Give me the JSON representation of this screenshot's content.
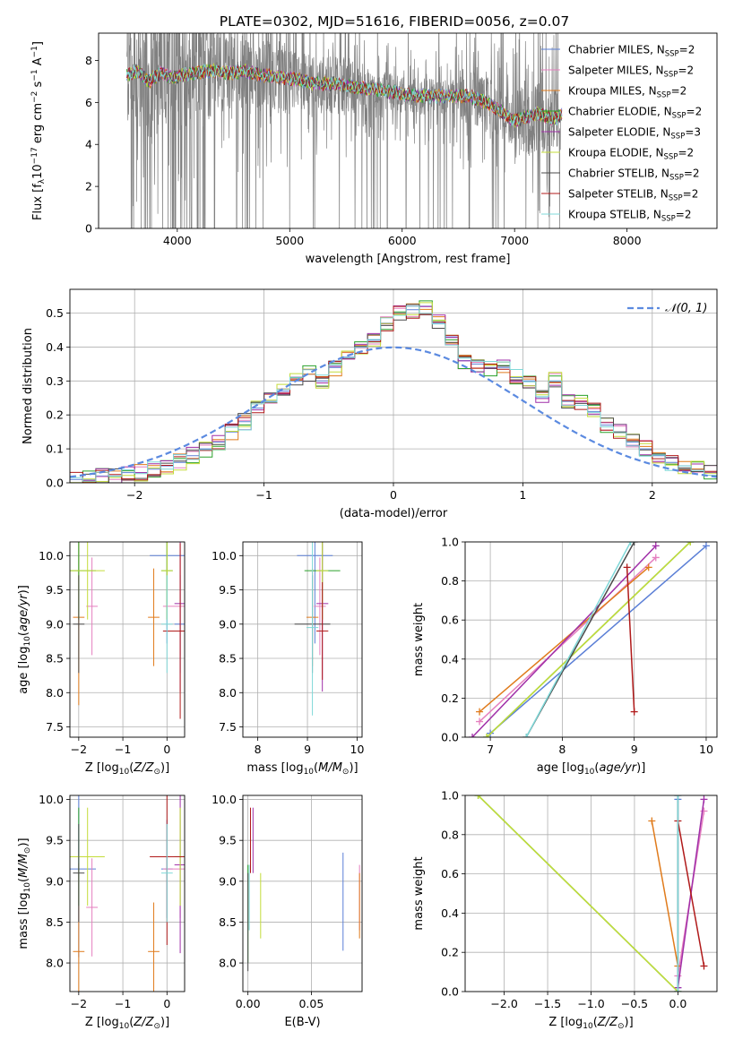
{
  "figure_title": "PLATE=0302, MJD=51616, FIBERID=0056, z=0.07",
  "colors": {
    "ChabrierMILES": "#5b7fd6",
    "SalpeterMILES": "#e57fbf",
    "KroupaMILES": "#e07b1c",
    "ChabrierELODIE": "#2aa12a",
    "SalpeterELODIE": "#a02fa8",
    "KroupaELODIE": "#c4dc3a",
    "ChabrierSTELIB": "#4a4a4a",
    "SalpeterSTELIB": "#b01a1a",
    "KroupaSTELIB": "#7fd8d8",
    "data": "#808080",
    "normal": "#5b8ae0"
  },
  "chart_data": [
    {
      "id": "spectrum",
      "type": "line",
      "title": "PLATE=0302, MJD=51616, FIBERID=0056, z=0.07",
      "xlabel": "wavelength [Angstrom, rest frame]",
      "ylabel": "Flux [f_λ 10^-17 erg cm^-2 s^-1 A^-1]",
      "xlim": [
        3300,
        8800
      ],
      "ylim": [
        0,
        9.3
      ],
      "xticks": [
        4000,
        5000,
        6000,
        7000,
        8000
      ],
      "yticks": [
        0,
        2,
        4,
        6,
        8
      ],
      "grid": false,
      "legend_position": "upper-right",
      "legend": [
        {
          "name": "Chabrier MILES, N_SSP=2",
          "pre": "Chabrier MILES, N",
          "sub": "SSP",
          "post": "=2",
          "color": "#5b7fd6"
        },
        {
          "name": "Salpeter MILES, N_SSP=2",
          "pre": "Salpeter MILES, N",
          "sub": "SSP",
          "post": "=2",
          "color": "#e57fbf"
        },
        {
          "name": "Kroupa MILES, N_SSP=2",
          "pre": "Kroupa MILES, N",
          "sub": "SSP",
          "post": "=2",
          "color": "#e07b1c"
        },
        {
          "name": "Chabrier ELODIE, N_SSP=2",
          "pre": "Chabrier ELODIE, N",
          "sub": "SSP",
          "post": "=2",
          "color": "#2aa12a"
        },
        {
          "name": "Salpeter ELODIE, N_SSP=3",
          "pre": "Salpeter ELODIE, N",
          "sub": "SSP",
          "post": "=3",
          "color": "#a02fa8"
        },
        {
          "name": "Kroupa ELODIE, N_SSP=2",
          "pre": "Kroupa ELODIE, N",
          "sub": "SSP",
          "post": "=2",
          "color": "#c4dc3a"
        },
        {
          "name": "Chabrier STELIB, N_SSP=2",
          "pre": "Chabrier STELIB, N",
          "sub": "SSP",
          "post": "=2",
          "color": "#4a4a4a"
        },
        {
          "name": "Salpeter STELIB, N_SSP=2",
          "pre": "Salpeter STELIB, N",
          "sub": "SSP",
          "post": "=2",
          "color": "#b01a1a"
        },
        {
          "name": "Kroupa STELIB, N_SSP=2",
          "pre": "Kroupa STELIB, N",
          "sub": "SSP",
          "post": "=2",
          "color": "#7fd8d8"
        }
      ],
      "model_continuum": {
        "x": [
          3550,
          3650,
          3750,
          3850,
          3950,
          4050,
          4150,
          4300,
          4450,
          4600,
          4750,
          4900,
          5050,
          5200,
          5400,
          5600,
          5800,
          6000,
          6200,
          6400,
          6600,
          6750,
          6900,
          7000,
          7100,
          7200,
          7350,
          7450
        ],
        "y": [
          7.3,
          7.5,
          7.0,
          7.4,
          7.2,
          7.3,
          7.4,
          7.5,
          7.4,
          7.5,
          7.3,
          7.2,
          7.1,
          6.9,
          6.9,
          6.7,
          6.6,
          6.4,
          6.3,
          6.3,
          6.3,
          6.0,
          5.5,
          5.1,
          5.3,
          5.5,
          5.2,
          5.5
        ]
      }
    },
    {
      "id": "residuals",
      "type": "histogram",
      "xlabel": "(data-model)/error",
      "ylabel": "Normed distribution",
      "xlim": [
        -2.5,
        2.5
      ],
      "ylim": [
        0,
        0.57
      ],
      "xticks": [
        -2,
        -1,
        0,
        1,
        2
      ],
      "yticks": [
        0.0,
        0.1,
        0.2,
        0.3,
        0.4,
        0.5
      ],
      "grid": true,
      "legend": [
        {
          "name": "N(0,1)",
          "label": "𝒩(0, 1)"
        }
      ],
      "legend_position": "upper-right",
      "bin_width": 0.1,
      "bin_start": -2.5,
      "values": [
        0.01,
        0.01,
        0.02,
        0.02,
        0.03,
        0.03,
        0.04,
        0.05,
        0.06,
        0.08,
        0.1,
        0.12,
        0.15,
        0.18,
        0.22,
        0.24,
        0.27,
        0.3,
        0.32,
        0.3,
        0.34,
        0.37,
        0.4,
        0.42,
        0.47,
        0.5,
        0.51,
        0.52,
        0.47,
        0.43,
        0.36,
        0.35,
        0.34,
        0.34,
        0.31,
        0.3,
        0.25,
        0.3,
        0.24,
        0.24,
        0.21,
        0.17,
        0.15,
        0.12,
        0.1,
        0.08,
        0.06,
        0.05,
        0.04,
        0.03
      ]
    },
    {
      "id": "age-vs-Z",
      "type": "scatter",
      "xlabel": "Z [log10(Z/Z⊙)]",
      "ylabel": "age [log10(age/yr)]",
      "xlim": [
        -2.2,
        0.4
      ],
      "ylim": [
        7.35,
        10.2
      ],
      "xticks": [
        -2,
        -1,
        0
      ],
      "yticks": [
        7.5,
        8.0,
        8.5,
        9.0,
        9.5,
        10.0
      ],
      "grid": true,
      "points": [
        {
          "series": "Chabrier MILES",
          "x": 0.0,
          "y": 10.0
        },
        {
          "series": "Chabrier MILES",
          "x": 0.3,
          "y": 9.0
        },
        {
          "series": "Salpeter MILES",
          "x": -1.7,
          "y": 9.26
        },
        {
          "series": "Salpeter MILES",
          "x": 0.3,
          "y": 9.26
        },
        {
          "series": "Kroupa MILES",
          "x": -2.0,
          "y": 9.1
        },
        {
          "series": "Kroupa MILES",
          "x": -0.3,
          "y": 9.1
        },
        {
          "series": "Chabrier ELODIE",
          "x": -2.0,
          "y": 9.78
        },
        {
          "series": "Chabrier ELODIE",
          "x": 0.0,
          "y": 9.78
        },
        {
          "series": "Salpeter ELODIE",
          "x": 0.3,
          "y": 9.3
        },
        {
          "series": "Kroupa ELODIE",
          "x": -1.8,
          "y": 9.78
        },
        {
          "series": "Kroupa ELODIE",
          "x": 0.0,
          "y": 9.78
        },
        {
          "series": "Chabrier STELIB",
          "x": -2.0,
          "y": 9.0
        },
        {
          "series": "Salpeter STELIB",
          "x": 0.3,
          "y": 8.9
        },
        {
          "series": "Kroupa STELIB",
          "x": 0.0,
          "y": 9.0
        }
      ]
    },
    {
      "id": "age-vs-mass",
      "type": "scatter",
      "xlabel": "mass [log10(M/M⊙)]",
      "ylabel": "",
      "xlim": [
        7.7,
        10.1
      ],
      "ylim": [
        7.35,
        10.2
      ],
      "xticks": [
        8,
        9,
        10
      ],
      "yticks": [
        7.5,
        8.0,
        8.5,
        9.0,
        9.5,
        10.0
      ],
      "grid": true,
      "points": [
        {
          "series": "Chabrier MILES",
          "x": 9.15,
          "y": 10.0
        },
        {
          "series": "Salpeter MILES",
          "x": 9.25,
          "y": 9.26
        },
        {
          "series": "Kroupa MILES",
          "x": 9.1,
          "y": 9.1
        },
        {
          "series": "Chabrier ELODIE",
          "x": 9.3,
          "y": 9.78
        },
        {
          "series": "Salpeter ELODIE",
          "x": 9.3,
          "y": 9.3
        },
        {
          "series": "Kroupa ELODIE",
          "x": 9.3,
          "y": 9.78
        },
        {
          "series": "Chabrier STELIB",
          "x": 9.1,
          "y": 9.0
        },
        {
          "series": "Salpeter STELIB",
          "x": 9.3,
          "y": 8.9
        },
        {
          "series": "Kroupa STELIB",
          "x": 9.1,
          "y": 8.95
        }
      ]
    },
    {
      "id": "weight-vs-age",
      "type": "line",
      "xlabel": "age [log10(age/yr)]",
      "ylabel": "mass weight",
      "xlim": [
        6.65,
        10.15
      ],
      "ylim": [
        0,
        1.0
      ],
      "xticks": [
        7,
        8,
        9,
        10
      ],
      "yticks": [
        0.0,
        0.2,
        0.4,
        0.6,
        0.8,
        1.0
      ],
      "grid": true,
      "series": [
        {
          "name": "Chabrier MILES",
          "x": [
            7.0,
            10.0
          ],
          "y": [
            0.02,
            0.98
          ]
        },
        {
          "name": "Salpeter MILES",
          "x": [
            6.85,
            9.3
          ],
          "y": [
            0.08,
            0.92
          ]
        },
        {
          "name": "Kroupa MILES",
          "x": [
            6.85,
            9.2
          ],
          "y": [
            0.13,
            0.87
          ]
        },
        {
          "name": "Chabrier ELODIE",
          "x": [
            6.95,
            9.78
          ],
          "y": [
            0.0,
            1.0
          ]
        },
        {
          "name": "Salpeter ELODIE",
          "x": [
            6.75,
            9.3
          ],
          "y": [
            0.0,
            0.98
          ]
        },
        {
          "name": "Kroupa ELODIE",
          "x": [
            6.95,
            9.78
          ],
          "y": [
            0.0,
            1.0
          ]
        },
        {
          "name": "Chabrier STELIB",
          "x": [
            7.5,
            9.0
          ],
          "y": [
            0.0,
            1.0
          ]
        },
        {
          "name": "Salpeter STELIB",
          "x": [
            8.9,
            9.0
          ],
          "y": [
            0.87,
            0.13
          ]
        },
        {
          "name": "Kroupa STELIB",
          "x": [
            7.5,
            8.95
          ],
          "y": [
            0.0,
            1.0
          ]
        }
      ]
    },
    {
      "id": "mass-vs-Z",
      "type": "scatter",
      "xlabel": "Z [log10(Z/Z⊙)]",
      "ylabel": "mass [log10(M/M⊙)]",
      "xlim": [
        -2.2,
        0.4
      ],
      "ylim": [
        7.65,
        10.05
      ],
      "xticks": [
        -2,
        -1,
        0
      ],
      "yticks": [
        8.0,
        8.5,
        9.0,
        9.5,
        10.0
      ],
      "grid": true,
      "points": [
        {
          "series": "Chabrier MILES",
          "x": -2.0,
          "y": 9.15
        },
        {
          "series": "Chabrier MILES",
          "x": 0.0,
          "y": 9.15
        },
        {
          "series": "Salpeter MILES",
          "x": -1.7,
          "y": 8.68
        },
        {
          "series": "Salpeter MILES",
          "x": 0.3,
          "y": 9.15
        },
        {
          "series": "Kroupa MILES",
          "x": -2.0,
          "y": 8.14
        },
        {
          "series": "Kroupa MILES",
          "x": -0.3,
          "y": 8.14
        },
        {
          "series": "Chabrier ELODIE",
          "x": -2.0,
          "y": 9.3
        },
        {
          "series": "Chabrier ELODIE",
          "x": 0.3,
          "y": 9.3
        },
        {
          "series": "Salpeter ELODIE",
          "x": 0.3,
          "y": 9.2
        },
        {
          "series": "Kroupa ELODIE",
          "x": -1.8,
          "y": 9.3
        },
        {
          "series": "Kroupa ELODIE",
          "x": 0.3,
          "y": 9.3
        },
        {
          "series": "Chabrier STELIB",
          "x": -2.0,
          "y": 9.1
        },
        {
          "series": "Salpeter STELIB",
          "x": 0.0,
          "y": 9.3
        },
        {
          "series": "Kroupa STELIB",
          "x": 0.0,
          "y": 9.1
        }
      ]
    },
    {
      "id": "mass-vs-EBV",
      "type": "scatter",
      "xlabel": "E(B-V)",
      "ylabel": "",
      "xlim": [
        -0.004,
        0.09
      ],
      "ylim": [
        7.65,
        10.05
      ],
      "xticks": [
        0.0,
        0.05
      ],
      "xticklabels": [
        "0.00",
        "0.05"
      ],
      "yticks": [
        8.0,
        8.5,
        9.0,
        9.5,
        10.0
      ],
      "grid": true,
      "points": [
        {
          "series": "Chabrier MILES",
          "x": 0.075,
          "y": 8.75
        },
        {
          "series": "Salpeter MILES",
          "x": 0.088,
          "y": 8.8
        },
        {
          "series": "Kroupa MILES",
          "x": 0.088,
          "y": 8.7
        },
        {
          "series": "Chabrier ELODIE",
          "x": 0.0,
          "y": 8.6
        },
        {
          "series": "Salpeter ELODIE",
          "x": 0.004,
          "y": 9.5
        },
        {
          "series": "Kroupa ELODIE",
          "x": 0.01,
          "y": 8.7
        },
        {
          "series": "Chabrier STELIB",
          "x": 0.0,
          "y": 8.5
        },
        {
          "series": "Salpeter STELIB",
          "x": 0.002,
          "y": 9.5
        },
        {
          "series": "Kroupa STELIB",
          "x": 0.001,
          "y": 8.8
        }
      ]
    },
    {
      "id": "weight-vs-Z",
      "type": "line",
      "xlabel": "Z [log10(Z/Z⊙)]",
      "ylabel": "mass weight",
      "xlim": [
        -2.45,
        0.45
      ],
      "ylim": [
        0,
        1.0
      ],
      "xticks": [
        -2.0,
        -1.5,
        -1.0,
        -0.5,
        0.0
      ],
      "xticklabels": [
        "−2.0",
        "−1.5",
        "−1.0",
        "−0.5",
        "0.0"
      ],
      "yticks": [
        0.0,
        0.2,
        0.4,
        0.6,
        0.8,
        1.0
      ],
      "grid": true,
      "series": [
        {
          "name": "Chabrier MILES",
          "x": [
            0.0,
            0.0
          ],
          "y": [
            0.02,
            0.98
          ]
        },
        {
          "name": "Salpeter MILES",
          "x": [
            0.0,
            0.3
          ],
          "y": [
            0.08,
            0.92
          ]
        },
        {
          "name": "Kroupa MILES",
          "x": [
            -0.3,
            0.0
          ],
          "y": [
            0.87,
            0.13
          ]
        },
        {
          "name": "Chabrier ELODIE",
          "x": [
            -2.3,
            0.0
          ],
          "y": [
            1.0,
            0.0
          ]
        },
        {
          "name": "Salpeter ELODIE",
          "x": [
            0.0,
            0.3
          ],
          "y": [
            0.02,
            0.98
          ]
        },
        {
          "name": "Kroupa ELODIE",
          "x": [
            -2.3,
            0.0
          ],
          "y": [
            1.0,
            0.0
          ]
        },
        {
          "name": "Chabrier STELIB",
          "x": [
            0.0,
            0.0
          ],
          "y": [
            0.0,
            1.0
          ]
        },
        {
          "name": "Salpeter STELIB",
          "x": [
            0.0,
            0.3
          ],
          "y": [
            0.87,
            0.13
          ]
        },
        {
          "name": "Kroupa STELIB",
          "x": [
            0.0,
            0.0
          ],
          "y": [
            0.0,
            1.0
          ]
        }
      ]
    }
  ]
}
